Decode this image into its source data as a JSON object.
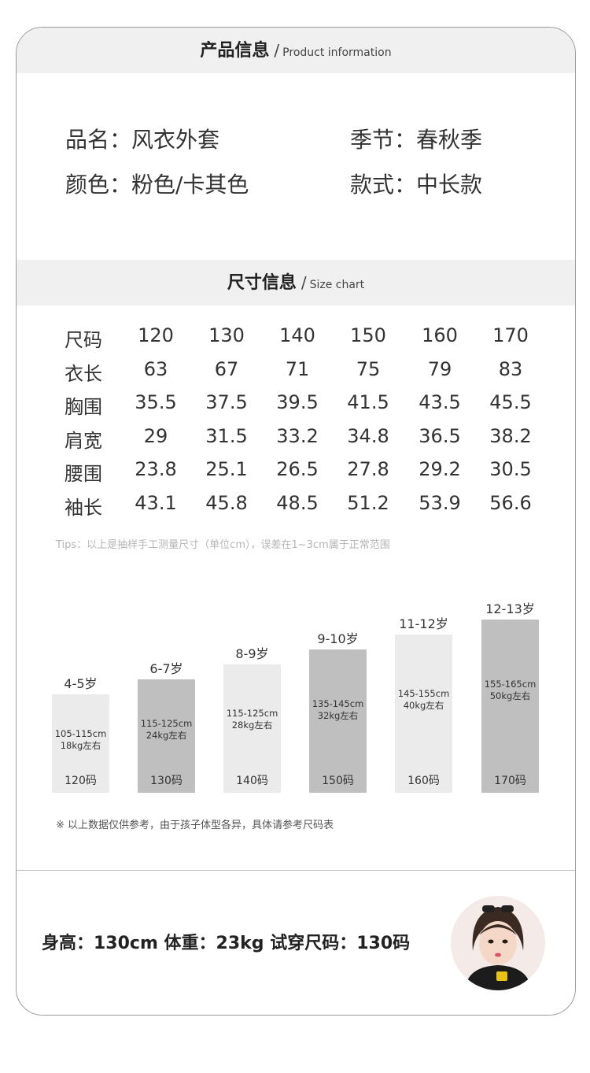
{
  "product_info": {
    "title_cn": "产品信息",
    "title_en": "Product information",
    "separator": "/",
    "name": "品名：风衣外套",
    "season": "季节：春秋季",
    "color": "颜色：粉色/卡其色",
    "style": "款式：中长款"
  },
  "size_chart": {
    "title_cn": "尺寸信息",
    "title_en": "Size chart",
    "separator": "/",
    "rows": [
      {
        "label": "尺码",
        "values": [
          "120",
          "130",
          "140",
          "150",
          "160",
          "170"
        ]
      },
      {
        "label": "衣长",
        "values": [
          "63",
          "67",
          "71",
          "75",
          "79",
          "83"
        ]
      },
      {
        "label": "胸围",
        "values": [
          "35.5",
          "37.5",
          "39.5",
          "41.5",
          "43.5",
          "45.5"
        ]
      },
      {
        "label": "肩宽",
        "values": [
          "29",
          "31.5",
          "33.2",
          "34.8",
          "36.5",
          "38.2"
        ]
      },
      {
        "label": "腰围",
        "values": [
          "23.8",
          "25.1",
          "26.5",
          "27.8",
          "29.2",
          "30.5"
        ]
      },
      {
        "label": "袖长",
        "values": [
          "43.1",
          "45.8",
          "48.5",
          "51.2",
          "53.9",
          "56.6"
        ]
      }
    ],
    "tips": "Tips：以上是抽样手工测量尺寸（单位cm），误差在1~3cm属于正常范围"
  },
  "chart_data": {
    "type": "bar",
    "categories": [
      "120码",
      "130码",
      "140码",
      "150码",
      "160码",
      "170码"
    ],
    "ages": [
      "4-5岁",
      "6-7岁",
      "8-9岁",
      "9-10岁",
      "11-12岁",
      "12-13岁"
    ],
    "heights": [
      "105-115cm",
      "115-125cm",
      "115-125cm",
      "135-145cm",
      "145-155cm",
      "155-165cm"
    ],
    "weights": [
      "18kg左右",
      "24kg左右",
      "28kg左右",
      "32kg左右",
      "40kg左右",
      "50kg左右"
    ],
    "values": [
      1,
      2,
      3,
      4,
      5,
      6
    ],
    "colors": [
      "#ebebeb",
      "#bfbfbf",
      "#ebebeb",
      "#bfbfbf",
      "#ebebeb",
      "#bfbfbf"
    ]
  },
  "reference_note": "※ 以上数据仅供参考，由于孩子体型各异，具体请参考尺码表",
  "model_info": "身高：130cm  体重：23kg  试穿尺码：130码"
}
